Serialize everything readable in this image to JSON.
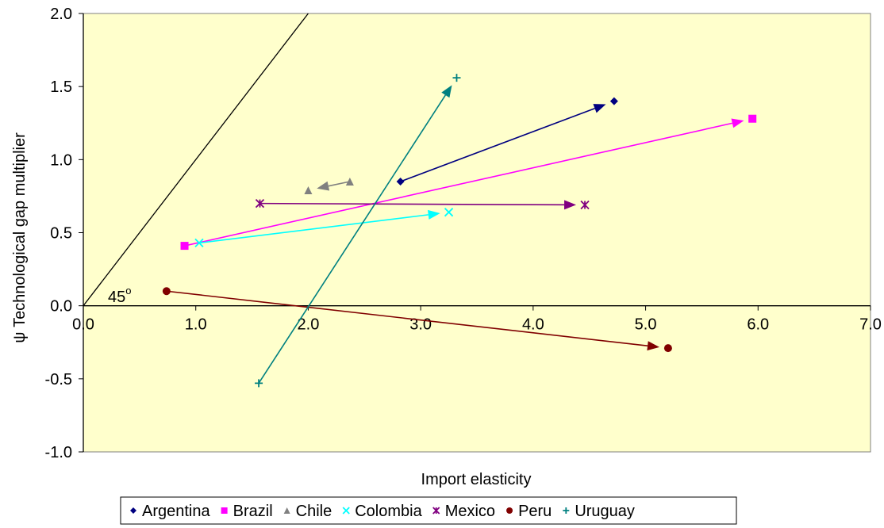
{
  "chart_data": {
    "type": "scatter",
    "xlabel": "Import elasticity",
    "ylabel": "ψ Technological gap multiplier",
    "xlim": [
      0,
      7
    ],
    "ylim": [
      -1,
      2
    ],
    "x_ticks": [
      "0.0",
      "1.0",
      "2.0",
      "3.0",
      "4.0",
      "5.0",
      "6.0",
      "7.0"
    ],
    "y_ticks": [
      "-1.0",
      "-0.5",
      "0.0",
      "0.5",
      "1.0",
      "1.5",
      "2.0"
    ],
    "plot_background": "#FFFFCC",
    "grid": false,
    "legend_position": "bottom",
    "reference_line": {
      "label": "45",
      "label_superscript": "o",
      "slope": 1,
      "intercept": 0
    },
    "series": [
      {
        "name": "Argentina",
        "color": "#000080",
        "marker": "diamond",
        "points": [
          [
            2.82,
            0.85
          ],
          [
            4.72,
            1.4
          ]
        ]
      },
      {
        "name": "Brazil",
        "color": "#FF00FF",
        "marker": "square",
        "points": [
          [
            0.9,
            0.41
          ],
          [
            5.95,
            1.28
          ]
        ]
      },
      {
        "name": "Chile",
        "color": "#808080",
        "marker": "triangle",
        "points": [
          [
            2.37,
            0.85
          ],
          [
            2.0,
            0.79
          ]
        ]
      },
      {
        "name": "Colombia",
        "color": "#00FFFF",
        "marker": "x",
        "points": [
          [
            1.03,
            0.43
          ],
          [
            3.25,
            0.64
          ]
        ]
      },
      {
        "name": "Mexico",
        "color": "#800080",
        "marker": "star",
        "points": [
          [
            1.57,
            0.7
          ],
          [
            4.46,
            0.69
          ]
        ]
      },
      {
        "name": "Peru",
        "color": "#800000",
        "marker": "circle",
        "points": [
          [
            0.74,
            0.1
          ],
          [
            5.2,
            -0.29
          ]
        ]
      },
      {
        "name": "Uruguay",
        "color": "#008080",
        "marker": "plus",
        "points": [
          [
            1.56,
            -0.53
          ],
          [
            3.32,
            1.56
          ]
        ]
      }
    ]
  }
}
